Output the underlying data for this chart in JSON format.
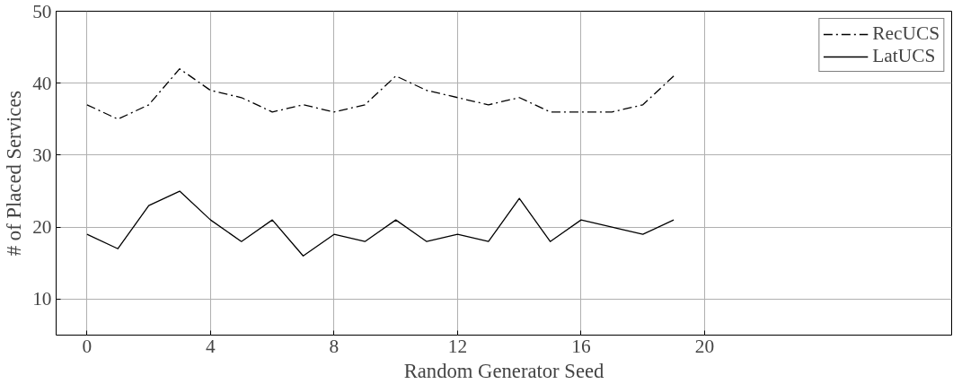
{
  "chart_data": {
    "type": "line",
    "xlabel": "Random Generator Seed",
    "ylabel": "# of Placed Services",
    "x": [
      0,
      1,
      2,
      3,
      4,
      5,
      6,
      7,
      8,
      9,
      10,
      11,
      12,
      13,
      14,
      15,
      16,
      17,
      18,
      19
    ],
    "series": [
      {
        "name": "RecUCS",
        "color": "#000000",
        "line_style": "dashed",
        "values": [
          37,
          35,
          37,
          42,
          39,
          38,
          36,
          37,
          36,
          37,
          41,
          39,
          38,
          37,
          38,
          36,
          36,
          36,
          37,
          41
        ]
      },
      {
        "name": "LatUCS",
        "color": "#000000",
        "line_style": "solid",
        "values": [
          19,
          17,
          23,
          25,
          21,
          18,
          21,
          16,
          19,
          18,
          21,
          18,
          19,
          18,
          24,
          18,
          21,
          20,
          19,
          21
        ]
      }
    ],
    "xlim": [
      -1,
      28
    ],
    "ylim": [
      5,
      50
    ],
    "xticks": [
      0,
      4,
      8,
      12,
      16,
      20
    ],
    "yticks": [
      10,
      20,
      30,
      40,
      50
    ],
    "grid": true,
    "legend": "top right",
    "marker": "none"
  }
}
